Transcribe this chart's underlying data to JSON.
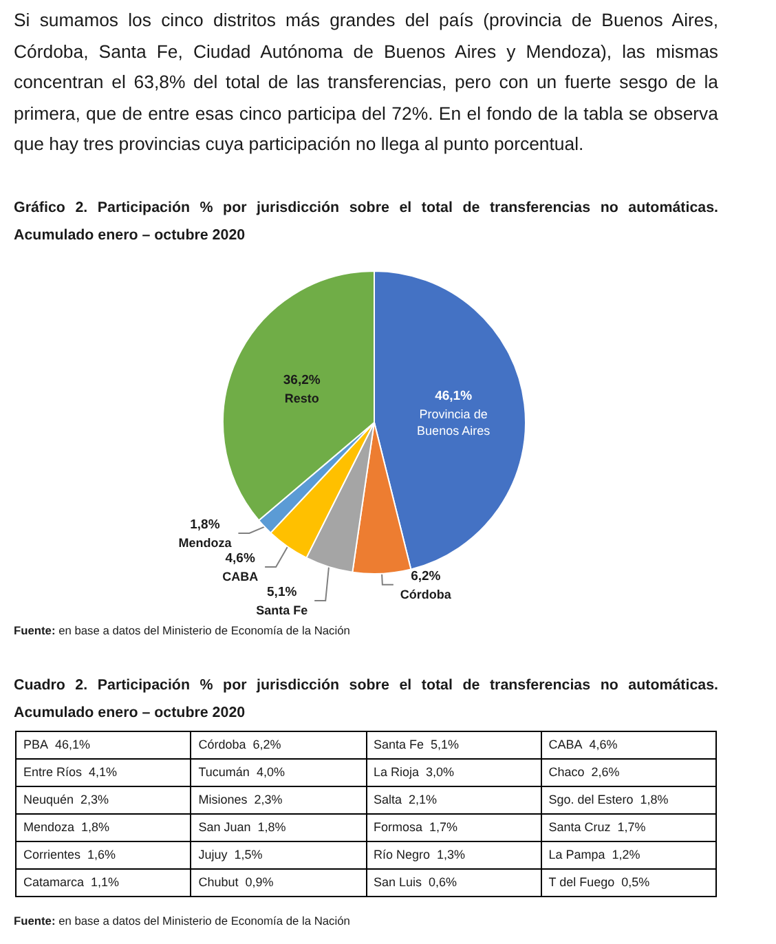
{
  "chart_data": [
    {
      "type": "other",
      "annotations": [
        "Si sumamos los cinco distritos más grandes del país (provincia de Buenos Aires, Córdoba, Santa Fe, Ciudad Autónoma de Buenos Aires y Mendoza), las mismas concentran el 63,8% del total de las transferencias, pero con un fuerte sesgo de la primera, que de entre esas cinco participa del 72%. En el fondo de la tabla se observa que hay tres provincias cuya participación no llega al punto porcentual."
      ]
    },
    {
      "type": "pie",
      "title": "Gráfico 2. Participación % por jurisdicción sobre el total de transferencias no automáticas. Acumulado enero – octubre 2020",
      "categories": [
        "Provincia de Buenos Aires",
        "Córdoba",
        "Santa Fe",
        "CABA",
        "Mendoza",
        "Resto"
      ],
      "values": [
        46.1,
        6.2,
        5.1,
        4.6,
        1.8,
        36.2
      ],
      "value_labels": [
        "46,1%",
        "6,2%",
        "5,1%",
        "4,6%",
        "1,8%",
        "36,2%"
      ],
      "colors": [
        "#4472c4",
        "#ed7d31",
        "#a5a5a5",
        "#ffc000",
        "#5b9bd5",
        "#70ad47"
      ],
      "annotations": [
        "Fuente: en base a datos del Ministerio de Economía de la Nación"
      ]
    },
    {
      "type": "other",
      "title": "Cuadro 2. Participación % por jurisdicción sobre el total de transferencias no automáticas. Acumulado enero – octubre 2020",
      "categories": [
        "PBA",
        "Córdoba",
        "Santa Fe",
        "CABA",
        "Entre Ríos",
        "Tucumán",
        "La Rioja",
        "Chaco",
        "Neuquén",
        "Misiones",
        "Salta",
        "Sgo. del Estero",
        "Mendoza",
        "San Juan",
        "Formosa",
        "Santa Cruz",
        "Corrientes",
        "Jujuy",
        "Río Negro",
        "La Pampa",
        "Catamarca",
        "Chubut",
        "San Luis",
        "T del Fuego"
      ],
      "values": [
        46.1,
        6.2,
        5.1,
        4.6,
        4.1,
        4.0,
        3.0,
        2.6,
        2.3,
        2.3,
        2.1,
        1.8,
        1.8,
        1.8,
        1.7,
        1.7,
        1.6,
        1.5,
        1.3,
        1.2,
        1.1,
        0.9,
        0.6,
        0.5
      ],
      "value_labels": [
        "46,1%",
        "6,2%",
        "5,1%",
        "4,6%",
        "4,1%",
        "4,0%",
        "3,0%",
        "2,6%",
        "2,3%",
        "2,3%",
        "2,1%",
        "1,8%",
        "1,8%",
        "1,8%",
        "1,7%",
        "1,7%",
        "1,6%",
        "1,5%",
        "1,3%",
        "1,2%",
        "1,1%",
        "0,9%",
        "0,6%",
        "0,5%"
      ],
      "annotations": [
        "Fuente: en base a datos del Ministerio de Economía de la Nación"
      ]
    }
  ]
}
